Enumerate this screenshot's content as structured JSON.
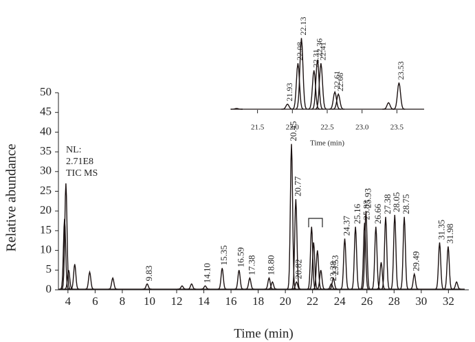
{
  "chart_data": [
    {
      "type": "peaks",
      "xlabel": "Time (min)",
      "ylabel": "Relative abundance",
      "annotations": [
        "NL:",
        "2.71E8",
        "TIC MS"
      ],
      "x": [
        3.75,
        3.85,
        4.05,
        4.5,
        5.6,
        7.3,
        9.83,
        12.4,
        13.1,
        14.1,
        15.35,
        16.59,
        17.38,
        18.8,
        19.05,
        20.45,
        20.77,
        20.82,
        21.93,
        22.08,
        22.36,
        22.61,
        23.38,
        23.53,
        24.37,
        25.16,
        25.83,
        25.93,
        26.66,
        27.05,
        27.38,
        28.05,
        28.75,
        29.49,
        31.35,
        31.98,
        32.6
      ],
      "values": [
        18,
        27,
        5,
        6.5,
        4.5,
        3,
        1.5,
        1,
        1.5,
        1,
        5.5,
        5,
        3,
        3,
        2,
        37,
        23,
        2,
        16,
        12,
        10,
        5,
        1.5,
        3,
        13,
        16,
        17,
        20,
        16,
        7,
        18.5,
        19,
        18.5,
        4,
        12,
        11,
        2
      ],
      "peak_labels": [
        null,
        null,
        null,
        null,
        null,
        null,
        "9.83",
        null,
        null,
        "14.10",
        "15.35",
        "16.59",
        "17.38",
        "18.80",
        null,
        "20.45",
        "20.77",
        "20.82",
        null,
        null,
        null,
        null,
        "23.38",
        "23.53",
        "24.37",
        "25.16",
        "25.83",
        "25.93",
        "26.66",
        null,
        "27.38",
        "28.05",
        "28.75",
        "29.49",
        "31.35",
        "31.98",
        null
      ],
      "color": "#1a1010",
      "xlim": [
        3.3,
        33.5
      ],
      "ylim": [
        0,
        50
      ],
      "xticks": [
        4,
        6,
        8,
        10,
        12,
        14,
        16,
        18,
        20,
        22,
        24,
        26,
        28,
        30,
        32
      ],
      "yticks": [
        0,
        5,
        10,
        15,
        20,
        25,
        30,
        35,
        40,
        45,
        50
      ]
    },
    {
      "type": "peaks",
      "xlabel": "Time (min)",
      "x": [
        21.2,
        21.93,
        22.08,
        22.13,
        22.31,
        22.36,
        22.41,
        22.61,
        22.66,
        23.38,
        23.53
      ],
      "values": [
        2,
        8,
        65,
        100,
        55,
        70,
        65,
        25,
        22,
        10,
        38
      ],
      "peak_labels": [
        null,
        "21.93",
        "22.08",
        "22.13",
        "22.31",
        "22.36",
        "22.41",
        "22.61",
        "22.66",
        null,
        "23.53"
      ],
      "color": "#1a1010",
      "xlim": [
        21.05,
        23.95
      ],
      "ylim": [
        0,
        110
      ],
      "xticks": [
        21.5,
        {
          "value": 22,
          "label": "22.0"
        },
        22.5,
        {
          "value": 23,
          "label": "23.0"
        },
        23.5
      ]
    }
  ]
}
